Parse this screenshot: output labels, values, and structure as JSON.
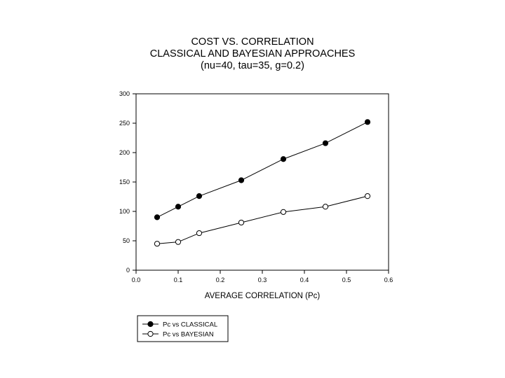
{
  "chart_data": {
    "type": "line",
    "title": "COST VS. CORRELATION",
    "subtitle": "CLASSICAL AND BAYESIAN APPROACHES",
    "subtitle2": "(nu=40, tau=35, g=0.2)",
    "xlabel": "AVERAGE CORRELATION (Pc)",
    "ylabel": "",
    "xlim": [
      0,
      0.6
    ],
    "ylim": [
      0,
      300
    ],
    "x_ticks": [
      "0.0",
      "0.1",
      "0.2",
      "0.3",
      "0.4",
      "0.5",
      "0.6"
    ],
    "y_ticks": [
      "0",
      "50",
      "100",
      "150",
      "200",
      "250",
      "300"
    ],
    "grid": false,
    "legend_position": "bottom-left",
    "series": [
      {
        "name": "Pc vs CLASSICAL",
        "marker": "filled-circle",
        "x": [
          0.05,
          0.1,
          0.15,
          0.25,
          0.35,
          0.45,
          0.55
        ],
        "y": [
          90,
          108,
          126,
          153,
          189,
          216,
          252
        ]
      },
      {
        "name": "Pc vs BAYESIAN",
        "marker": "open-circle",
        "x": [
          0.05,
          0.1,
          0.15,
          0.25,
          0.35,
          0.45,
          0.55
        ],
        "y": [
          45,
          48,
          63,
          81,
          99,
          108,
          126
        ]
      }
    ]
  }
}
